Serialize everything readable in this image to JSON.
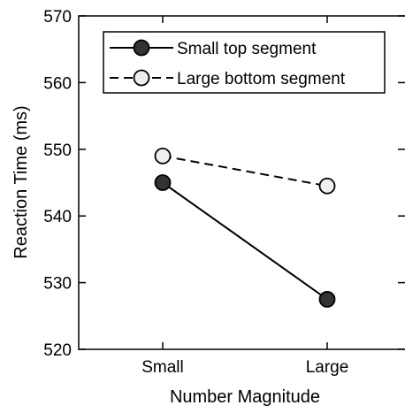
{
  "chart_data": {
    "type": "line",
    "title": "",
    "xlabel": "Number Magnitude",
    "ylabel": "Reaction Time (ms)",
    "categories": [
      "Small",
      "Large"
    ],
    "ylim": [
      520,
      570
    ],
    "yticks": [
      520,
      530,
      540,
      550,
      560,
      570
    ],
    "grid": false,
    "legend_position": "top-left",
    "series": [
      {
        "name": "Small top segment",
        "values": [
          545,
          527.5
        ],
        "line_style": "solid",
        "marker": "filled-circle",
        "marker_color": "#333333"
      },
      {
        "name": "Large bottom segment",
        "values": [
          549,
          544.5
        ],
        "line_style": "dashed",
        "marker": "open-circle",
        "marker_color": "#eeeeee"
      }
    ]
  }
}
